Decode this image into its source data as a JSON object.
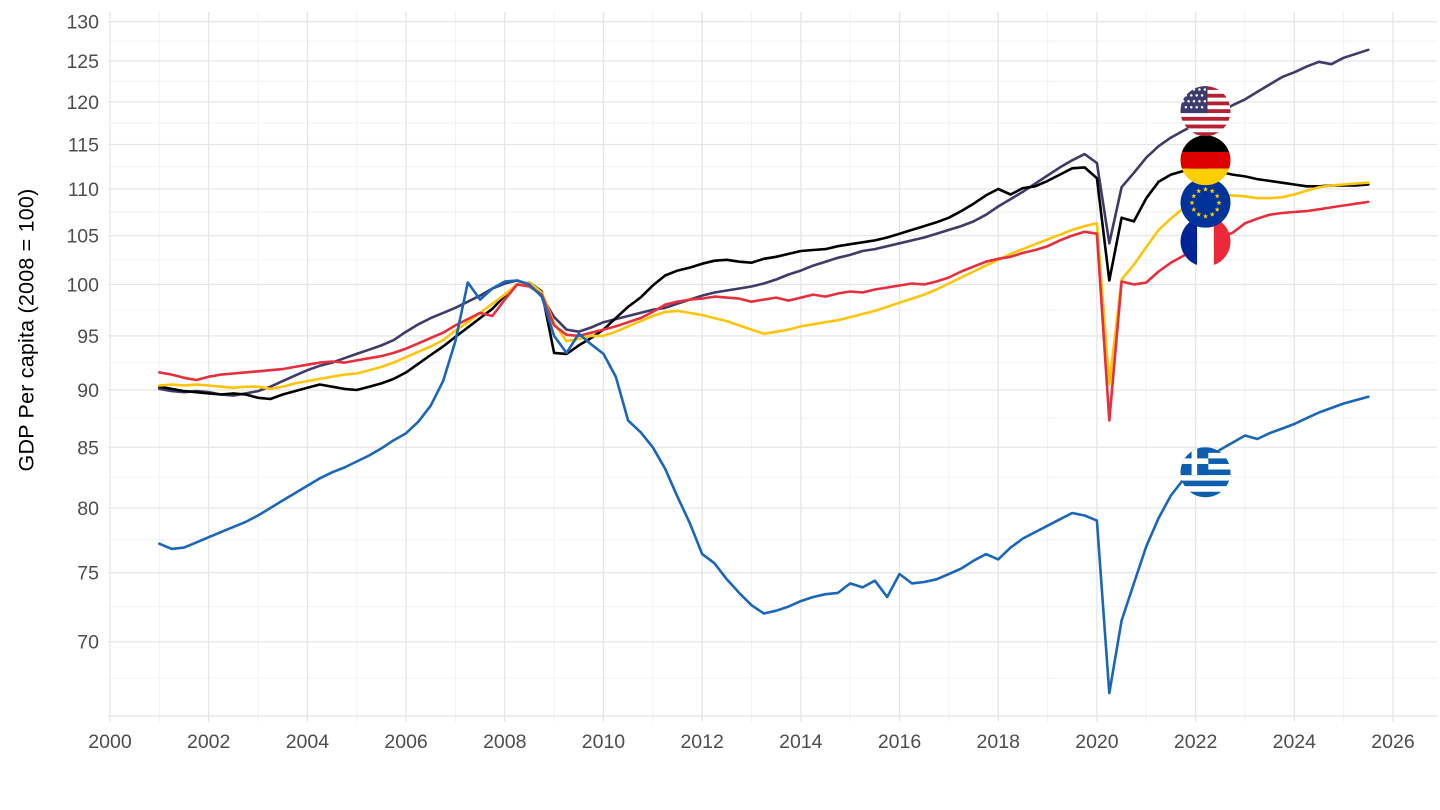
{
  "chart_data": {
    "type": "line",
    "title": "",
    "ylabel": "GDP Per capita (2008 = 100)",
    "xlabel": "",
    "x_axis": {
      "major_ticks": [
        2000,
        2002,
        2004,
        2006,
        2008,
        2010,
        2012,
        2014,
        2016,
        2018,
        2020,
        2022,
        2024,
        2026
      ],
      "minor_ticks": [
        2001,
        2003,
        2005,
        2007,
        2009,
        2011,
        2013,
        2015,
        2017,
        2019,
        2021,
        2023,
        2025
      ],
      "range": [
        2000,
        2026.9
      ]
    },
    "y_axis": {
      "scale": "log",
      "labeled_ticks": [
        70,
        75,
        80,
        85,
        90,
        95,
        100,
        105,
        110,
        115,
        120,
        125,
        130
      ],
      "unlabeled_major_ticks": [
        65
      ],
      "minor_ticks": [
        67.5,
        72.5,
        77.5,
        82.5,
        87.5,
        92.5,
        97.5,
        102.5,
        107.5,
        112.5,
        117.5,
        122.5,
        127.5
      ],
      "range": [
        65,
        130
      ],
      "grid": true,
      "legend_position": "flag-markers-on-plot"
    },
    "x_start": 2001.0,
    "x_step": 0.25,
    "series": [
      {
        "name": "United States",
        "flag": "us",
        "color": "#3e3b66",
        "values": [
          90.1,
          89.9,
          89.8,
          89.9,
          89.8,
          89.6,
          89.5,
          89.7,
          89.9,
          90.3,
          90.8,
          91.3,
          91.8,
          92.2,
          92.5,
          92.9,
          93.3,
          93.7,
          94.1,
          94.6,
          95.4,
          96.1,
          96.7,
          97.2,
          97.7,
          98.3,
          98.9,
          99.6,
          100.1,
          100.4,
          100.0,
          98.8,
          96.8,
          95.6,
          95.4,
          95.8,
          96.3,
          96.6,
          96.9,
          97.2,
          97.5,
          97.7,
          98.1,
          98.5,
          98.9,
          99.2,
          99.4,
          99.6,
          99.8,
          100.1,
          100.5,
          101.0,
          101.4,
          101.9,
          102.3,
          102.7,
          103.0,
          103.4,
          103.6,
          103.9,
          104.2,
          104.5,
          104.8,
          105.2,
          105.6,
          106.0,
          106.5,
          107.2,
          108.1,
          108.9,
          109.7,
          110.6,
          111.5,
          112.4,
          113.2,
          113.9,
          112.9,
          104.2,
          110.2,
          111.8,
          113.5,
          114.8,
          115.8,
          116.6,
          117.3,
          118.0,
          118.7,
          119.6,
          120.3,
          121.2,
          122.1,
          123.0,
          123.6,
          124.3,
          124.9,
          124.6,
          125.4,
          125.9,
          126.4
        ]
      },
      {
        "name": "Germany",
        "flag": "de",
        "color": "#000000",
        "values": [
          90.3,
          90.1,
          89.9,
          89.8,
          89.7,
          89.6,
          89.7,
          89.6,
          89.3,
          89.2,
          89.6,
          89.9,
          90.2,
          90.5,
          90.3,
          90.1,
          90.0,
          90.3,
          90.6,
          91.0,
          91.6,
          92.4,
          93.2,
          94.0,
          94.9,
          95.8,
          96.7,
          97.6,
          98.9,
          100.0,
          100.2,
          99.3,
          93.4,
          93.3,
          94.1,
          94.8,
          95.6,
          96.7,
          97.8,
          98.7,
          99.9,
          100.9,
          101.4,
          101.7,
          102.1,
          102.4,
          102.5,
          102.3,
          102.2,
          102.6,
          102.8,
          103.1,
          103.4,
          103.5,
          103.6,
          103.9,
          104.1,
          104.3,
          104.5,
          104.8,
          105.2,
          105.6,
          106.0,
          106.4,
          106.9,
          107.6,
          108.4,
          109.3,
          110.0,
          109.4,
          110.1,
          110.3,
          110.9,
          111.6,
          112.3,
          112.4,
          111.2,
          100.4,
          106.9,
          106.5,
          109.0,
          110.8,
          111.6,
          112.0,
          112.2,
          112.1,
          111.9,
          111.6,
          111.4,
          111.1,
          110.9,
          110.7,
          110.5,
          110.3,
          110.3,
          110.4,
          110.4,
          110.4,
          110.5
        ]
      },
      {
        "name": "European Union",
        "flag": "eu",
        "color": "#fdc50a",
        "values": [
          90.4,
          90.5,
          90.4,
          90.5,
          90.4,
          90.3,
          90.2,
          90.3,
          90.3,
          90.1,
          90.3,
          90.6,
          90.8,
          91.0,
          91.2,
          91.4,
          91.5,
          91.8,
          92.1,
          92.5,
          93.0,
          93.5,
          94.0,
          94.6,
          95.5,
          96.3,
          97.2,
          98.1,
          99.0,
          100.0,
          100.2,
          99.2,
          96.2,
          94.5,
          94.7,
          95.0,
          95.0,
          95.4,
          95.9,
          96.4,
          96.9,
          97.3,
          97.4,
          97.2,
          97.0,
          96.7,
          96.4,
          96.0,
          95.6,
          95.2,
          95.4,
          95.6,
          95.9,
          96.1,
          96.3,
          96.5,
          96.8,
          97.1,
          97.4,
          97.8,
          98.2,
          98.6,
          99.0,
          99.5,
          100.1,
          100.7,
          101.3,
          101.9,
          102.5,
          103.1,
          103.6,
          104.1,
          104.6,
          105.1,
          105.6,
          106.0,
          106.3,
          90.5,
          100.5,
          102.0,
          103.8,
          105.6,
          106.8,
          107.9,
          108.7,
          109.1,
          109.3,
          109.3,
          109.2,
          109.0,
          109.0,
          109.1,
          109.4,
          109.8,
          110.2,
          110.4,
          110.5,
          110.6,
          110.7
        ]
      },
      {
        "name": "France",
        "flag": "fr",
        "color": "#e62f3e",
        "values": [
          91.6,
          91.4,
          91.1,
          90.9,
          91.2,
          91.4,
          91.5,
          91.6,
          91.7,
          91.8,
          91.9,
          92.1,
          92.3,
          92.5,
          92.6,
          92.5,
          92.7,
          92.9,
          93.1,
          93.4,
          93.8,
          94.3,
          94.8,
          95.3,
          96.0,
          96.6,
          97.2,
          96.9,
          98.5,
          100.0,
          99.8,
          99.0,
          96.0,
          95.1,
          95.0,
          95.3,
          95.6,
          95.9,
          96.3,
          96.7,
          97.3,
          98.0,
          98.3,
          98.5,
          98.6,
          98.8,
          98.7,
          98.6,
          98.3,
          98.5,
          98.7,
          98.4,
          98.7,
          99.0,
          98.8,
          99.1,
          99.3,
          99.2,
          99.5,
          99.7,
          99.9,
          100.1,
          100.0,
          100.3,
          100.7,
          101.3,
          101.8,
          102.3,
          102.6,
          102.8,
          103.2,
          103.5,
          103.9,
          104.5,
          105.0,
          105.4,
          105.2,
          87.3,
          100.3,
          100.0,
          100.2,
          101.3,
          102.2,
          102.9,
          103.7,
          104.3,
          104.8,
          105.3,
          106.3,
          106.8,
          107.2,
          107.4,
          107.5,
          107.6,
          107.8,
          108.0,
          108.2,
          108.4,
          108.6
        ]
      },
      {
        "name": "Greece",
        "flag": "gr",
        "color": "#1a66b8",
        "values": [
          77.2,
          76.8,
          76.9,
          77.3,
          77.7,
          78.1,
          78.5,
          78.9,
          79.4,
          80.0,
          80.6,
          81.2,
          81.8,
          82.4,
          82.9,
          83.3,
          83.8,
          84.3,
          84.9,
          85.6,
          86.2,
          87.2,
          88.6,
          90.8,
          94.5,
          100.2,
          98.5,
          99.6,
          100.3,
          100.4,
          100.0,
          98.8,
          95.0,
          93.4,
          95.2,
          94.2,
          93.3,
          91.2,
          87.3,
          86.3,
          85.0,
          83.2,
          80.9,
          78.8,
          76.4,
          75.7,
          74.5,
          73.5,
          72.6,
          72.0,
          72.2,
          72.5,
          72.9,
          73.2,
          73.4,
          73.5,
          74.2,
          73.9,
          74.4,
          73.2,
          74.9,
          74.2,
          74.3,
          74.5,
          74.9,
          75.3,
          75.9,
          76.4,
          76.0,
          76.9,
          77.6,
          78.1,
          78.6,
          79.1,
          79.6,
          79.4,
          79.0,
          66.5,
          71.5,
          74.2,
          77.0,
          79.2,
          81.0,
          82.3,
          83.2,
          84.0,
          84.8,
          85.4,
          86.0,
          85.7,
          86.2,
          86.6,
          87.0,
          87.5,
          88.0,
          88.4,
          88.8,
          89.1,
          89.4
        ]
      }
    ],
    "flag_markers": [
      {
        "series": "us",
        "country": "United States",
        "year": 2022.2,
        "value": 118.9
      },
      {
        "series": "de",
        "country": "Germany",
        "year": 2022.2,
        "value": 113.2
      },
      {
        "series": "eu",
        "country": "European Union",
        "year": 2022.2,
        "value": 108.5
      },
      {
        "series": "fr",
        "country": "France",
        "year": 2022.2,
        "value": 104.4
      },
      {
        "series": "gr",
        "country": "Greece",
        "year": 2022.2,
        "value": 82.9
      }
    ],
    "flag_colors": {
      "us_stripe_red": "#B22234",
      "us_canton_blue": "#3C3B6E",
      "de_black": "#000000",
      "de_red": "#DD0000",
      "de_gold": "#FFCE00",
      "eu_blue": "#003399",
      "eu_star_gold": "#FFCC00",
      "fr_blue": "#002395",
      "fr_white": "#FFFFFF",
      "fr_red": "#ED2939",
      "gr_blue": "#0D5EAF",
      "gr_white": "#FFFFFF"
    },
    "grid_colors": {
      "major": "#e6e6e6",
      "minor": "#f2f2f2"
    },
    "tick_label_color": "#4d4d4d"
  }
}
